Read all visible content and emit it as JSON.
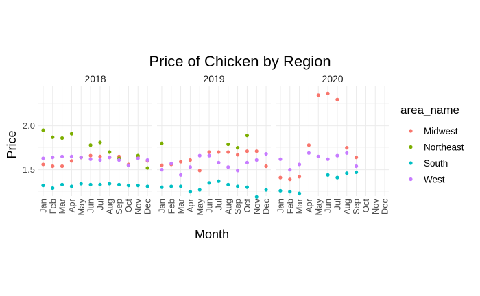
{
  "chart_data": {
    "type": "scatter",
    "title": "Price of Chicken by Region",
    "xlabel": "Month",
    "ylabel": "Price",
    "ylim": [
      1.2,
      2.45
    ],
    "yticks": [
      1.5,
      2.0
    ],
    "ytick_labels": [
      "1.5",
      "2.0"
    ],
    "grid": true,
    "legend_position": "right",
    "legend_title": "area_name",
    "months": [
      "Jan",
      "Feb",
      "Mar",
      "Apr",
      "May",
      "Jun",
      "Jul",
      "Aug",
      "Sep",
      "Oct",
      "Nov",
      "Dec"
    ],
    "facets": [
      {
        "label": "2018",
        "series": [
          {
            "name": "Midwest",
            "values": [
              1.56,
              1.54,
              1.54,
              1.6,
              1.64,
              1.66,
              1.65,
              1.64,
              1.65,
              1.56,
              1.65,
              1.6
            ]
          },
          {
            "name": "Northeast",
            "values": [
              1.95,
              1.87,
              1.86,
              1.91,
              1.64,
              1.78,
              1.81,
              1.7,
              1.63,
              1.55,
              1.66,
              1.52
            ]
          },
          {
            "name": "South",
            "values": [
              1.32,
              1.29,
              1.33,
              1.31,
              1.34,
              1.33,
              1.33,
              1.34,
              1.33,
              1.32,
              1.32,
              1.31
            ]
          },
          {
            "name": "West",
            "values": [
              1.63,
              1.64,
              1.65,
              1.65,
              1.64,
              1.62,
              1.61,
              1.64,
              1.61,
              1.55,
              1.63,
              1.61
            ]
          }
        ]
      },
      {
        "label": "2019",
        "series": [
          {
            "name": "Midwest",
            "values": [
              1.55,
              1.56,
              1.59,
              1.61,
              1.49,
              1.7,
              1.7,
              1.7,
              1.67,
              1.71,
              1.71,
              1.54
            ]
          },
          {
            "name": "Northeast",
            "values": [
              1.8,
              null,
              null,
              null,
              null,
              null,
              null,
              1.79,
              1.75,
              1.89,
              null,
              null
            ]
          },
          {
            "name": "South",
            "values": [
              1.3,
              1.31,
              1.31,
              1.25,
              1.27,
              1.35,
              1.37,
              1.33,
              1.31,
              1.3,
              1.19,
              1.27
            ]
          },
          {
            "name": "West",
            "values": [
              1.5,
              1.57,
              1.44,
              1.53,
              1.66,
              1.66,
              1.58,
              1.53,
              1.49,
              1.58,
              1.61,
              1.68
            ]
          }
        ]
      },
      {
        "label": "2020",
        "series": [
          {
            "name": "Midwest",
            "values": [
              1.41,
              1.39,
              1.42,
              1.78,
              2.35,
              2.37,
              2.3,
              1.75,
              1.64,
              null,
              null,
              null
            ]
          },
          {
            "name": "Northeast",
            "values": [
              null,
              null,
              null,
              null,
              null,
              null,
              null,
              null,
              null,
              null,
              null,
              null
            ]
          },
          {
            "name": "South",
            "values": [
              1.26,
              1.25,
              1.23,
              null,
              null,
              1.44,
              1.41,
              1.46,
              1.47,
              null,
              null,
              null
            ]
          },
          {
            "name": "West",
            "values": [
              1.62,
              1.5,
              1.56,
              1.69,
              1.65,
              1.62,
              1.66,
              1.69,
              1.54,
              null,
              null,
              null
            ]
          }
        ]
      }
    ],
    "legend": [
      {
        "name": "Midwest",
        "color": "#F8766D"
      },
      {
        "name": "Northeast",
        "color": "#7CAE00"
      },
      {
        "name": "South",
        "color": "#00BFC4"
      },
      {
        "name": "West",
        "color": "#C77CFF"
      }
    ]
  }
}
